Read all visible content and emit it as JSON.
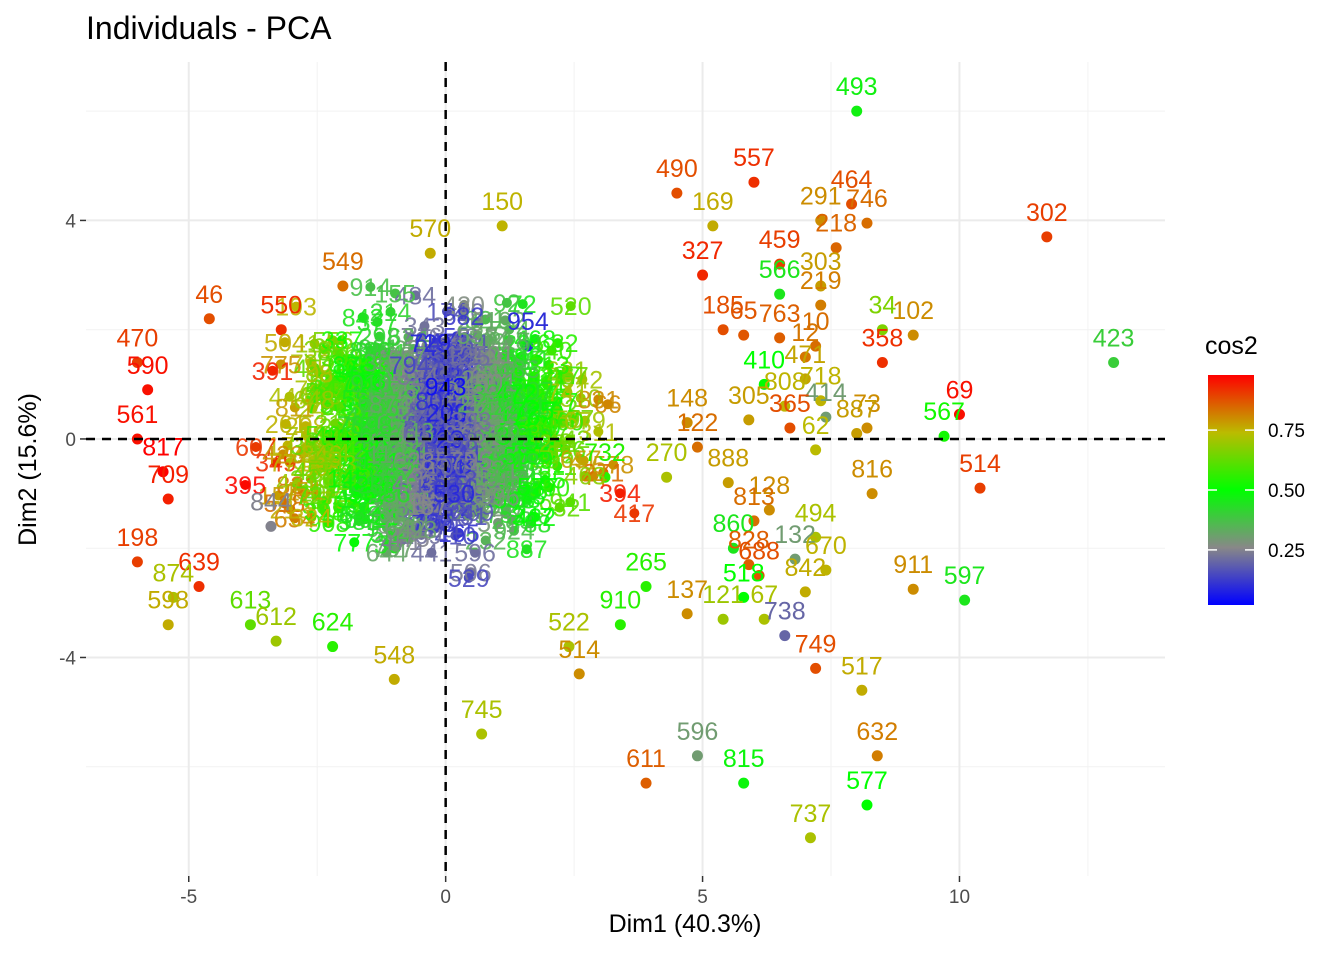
{
  "chart_data": {
    "type": "scatter",
    "title": "Individuals - PCA",
    "xlabel": "Dim1 (40.3%)",
    "ylabel": "Dim2 (15.6%)",
    "xlim": [
      -7,
      14
    ],
    "ylim": [
      -8,
      6.9
    ],
    "x_ticks": [
      -5,
      0,
      5,
      10
    ],
    "y_ticks": [
      -4,
      0,
      4
    ],
    "x_tick_labels": [
      "-5",
      "0",
      "5",
      "10"
    ],
    "y_tick_labels": [
      "-4",
      "0",
      "4"
    ],
    "grid": true,
    "reference_lines": {
      "x": 0,
      "y": 0,
      "style": "dashed"
    },
    "color_variable": "cos2",
    "legend": {
      "title": "cos2",
      "placement": "right",
      "ticks": [
        0.25,
        0.5,
        0.75
      ],
      "tick_labels": [
        "0.25",
        "0.50",
        "0.75"
      ],
      "range": [
        0.02,
        0.98
      ],
      "gradient_colors": [
        "#0000ff",
        "#888888",
        "#00ff00",
        "#bbbb00",
        "#ff0000"
      ]
    },
    "points": [
      {
        "label": "493",
        "x": 8.0,
        "y": 6.0,
        "cos2": 0.47
      },
      {
        "label": "557",
        "x": 6.0,
        "y": 4.7,
        "cos2": 0.92
      },
      {
        "label": "490",
        "x": 4.5,
        "y": 4.5,
        "cos2": 0.88
      },
      {
        "label": "169",
        "x": 5.2,
        "y": 3.9,
        "cos2": 0.76
      },
      {
        "label": "464",
        "x": 7.9,
        "y": 4.3,
        "cos2": 0.88
      },
      {
        "label": "291",
        "x": 7.3,
        "y": 4.0,
        "cos2": 0.8
      },
      {
        "label": "746",
        "x": 8.2,
        "y": 3.95,
        "cos2": 0.84
      },
      {
        "label": "218",
        "x": 7.6,
        "y": 3.5,
        "cos2": 0.85
      },
      {
        "label": "302",
        "x": 11.7,
        "y": 3.7,
        "cos2": 0.9
      },
      {
        "label": "327",
        "x": 5.0,
        "y": 3.0,
        "cos2": 0.93
      },
      {
        "label": "459",
        "x": 6.5,
        "y": 3.2,
        "cos2": 0.9
      },
      {
        "label": "566",
        "x": 6.5,
        "y": 2.65,
        "cos2": 0.45
      },
      {
        "label": "303",
        "x": 7.3,
        "y": 2.8,
        "cos2": 0.78
      },
      {
        "label": "219",
        "x": 7.3,
        "y": 2.45,
        "cos2": 0.82
      },
      {
        "label": "185",
        "x": 5.4,
        "y": 2.0,
        "cos2": 0.88
      },
      {
        "label": "65",
        "x": 5.8,
        "y": 1.9,
        "cos2": 0.87
      },
      {
        "label": "763",
        "x": 6.5,
        "y": 1.85,
        "cos2": 0.86
      },
      {
        "label": "34",
        "x": 8.5,
        "y": 2.0,
        "cos2": 0.66
      },
      {
        "label": "102",
        "x": 9.1,
        "y": 1.9,
        "cos2": 0.8
      },
      {
        "label": "358",
        "x": 8.5,
        "y": 1.4,
        "cos2": 0.92
      },
      {
        "label": "423",
        "x": 13.0,
        "y": 1.4,
        "cos2": 0.4
      },
      {
        "label": "12",
        "x": 7.0,
        "y": 1.5,
        "cos2": 0.83
      },
      {
        "label": "10",
        "x": 7.2,
        "y": 1.7,
        "cos2": 0.84
      },
      {
        "label": "471",
        "x": 7.0,
        "y": 1.1,
        "cos2": 0.77
      },
      {
        "label": "410",
        "x": 6.2,
        "y": 1.0,
        "cos2": 0.5
      },
      {
        "label": "718",
        "x": 7.3,
        "y": 0.7,
        "cos2": 0.75
      },
      {
        "label": "69",
        "x": 10.0,
        "y": 0.45,
        "cos2": 0.96
      },
      {
        "label": "567",
        "x": 9.7,
        "y": 0.05,
        "cos2": 0.52
      },
      {
        "label": "414",
        "x": 7.4,
        "y": 0.4,
        "cos2": 0.3
      },
      {
        "label": "305",
        "x": 5.9,
        "y": 0.35,
        "cos2": 0.78
      },
      {
        "label": "808",
        "x": 6.6,
        "y": 0.6,
        "cos2": 0.75
      },
      {
        "label": "365",
        "x": 6.7,
        "y": 0.2,
        "cos2": 0.88
      },
      {
        "label": "73",
        "x": 8.2,
        "y": 0.2,
        "cos2": 0.8
      },
      {
        "label": "887",
        "x": 8.0,
        "y": 0.1,
        "cos2": 0.78
      },
      {
        "label": "62",
        "x": 7.2,
        "y": -0.2,
        "cos2": 0.74
      },
      {
        "label": "816",
        "x": 8.3,
        "y": -1.0,
        "cos2": 0.8
      },
      {
        "label": "514",
        "x": 10.4,
        "y": -0.9,
        "cos2": 0.9
      },
      {
        "label": "888",
        "x": 5.5,
        "y": -0.8,
        "cos2": 0.78
      },
      {
        "label": "128",
        "x": 6.3,
        "y": -1.3,
        "cos2": 0.8
      },
      {
        "label": "813",
        "x": 6.0,
        "y": -1.5,
        "cos2": 0.84
      },
      {
        "label": "494",
        "x": 7.2,
        "y": -1.8,
        "cos2": 0.72
      },
      {
        "label": "860",
        "x": 5.6,
        "y": -2.0,
        "cos2": 0.45
      },
      {
        "label": "828",
        "x": 5.9,
        "y": -2.3,
        "cos2": 0.86
      },
      {
        "label": "132",
        "x": 6.8,
        "y": -2.2,
        "cos2": 0.3
      },
      {
        "label": "670",
        "x": 7.4,
        "y": -2.4,
        "cos2": 0.75
      },
      {
        "label": "688",
        "x": 6.1,
        "y": -2.5,
        "cos2": 0.88
      },
      {
        "label": "911",
        "x": 9.1,
        "y": -2.75,
        "cos2": 0.8
      },
      {
        "label": "597",
        "x": 10.1,
        "y": -2.95,
        "cos2": 0.45
      },
      {
        "label": "842",
        "x": 7.0,
        "y": -2.8,
        "cos2": 0.76
      },
      {
        "label": "518",
        "x": 5.8,
        "y": -2.9,
        "cos2": 0.5
      },
      {
        "label": "137",
        "x": 4.7,
        "y": -3.2,
        "cos2": 0.8
      },
      {
        "label": "121",
        "x": 5.4,
        "y": -3.3,
        "cos2": 0.7
      },
      {
        "label": "67",
        "x": 6.2,
        "y": -3.3,
        "cos2": 0.72
      },
      {
        "label": "738",
        "x": 6.6,
        "y": -3.6,
        "cos2": 0.2
      },
      {
        "label": "749",
        "x": 7.2,
        "y": -4.2,
        "cos2": 0.88
      },
      {
        "label": "517",
        "x": 8.1,
        "y": -4.6,
        "cos2": 0.76
      },
      {
        "label": "265",
        "x": 3.9,
        "y": -2.7,
        "cos2": 0.55
      },
      {
        "label": "745",
        "x": 0.7,
        "y": -5.4,
        "cos2": 0.72
      },
      {
        "label": "596",
        "x": 4.9,
        "y": -5.8,
        "cos2": 0.3
      },
      {
        "label": "611",
        "x": 3.9,
        "y": -6.3,
        "cos2": 0.86
      },
      {
        "label": "815",
        "x": 5.8,
        "y": -6.3,
        "cos2": 0.48
      },
      {
        "label": "632",
        "x": 8.4,
        "y": -5.8,
        "cos2": 0.82
      },
      {
        "label": "577",
        "x": 8.2,
        "y": -6.7,
        "cos2": 0.5
      },
      {
        "label": "737",
        "x": 7.1,
        "y": -7.3,
        "cos2": 0.72
      },
      {
        "label": "150",
        "x": 1.1,
        "y": 3.9,
        "cos2": 0.75
      },
      {
        "label": "570",
        "x": -0.3,
        "y": 3.4,
        "cos2": 0.76
      },
      {
        "label": "549",
        "x": -2.0,
        "y": 2.8,
        "cos2": 0.84
      },
      {
        "label": "46",
        "x": -4.6,
        "y": 2.2,
        "cos2": 0.88
      },
      {
        "label": "550",
        "x": -3.2,
        "y": 2.0,
        "cos2": 0.92
      },
      {
        "label": "470",
        "x": -6.0,
        "y": 1.4,
        "cos2": 0.9
      },
      {
        "label": "590",
        "x": -5.8,
        "y": 0.9,
        "cos2": 0.96
      },
      {
        "label": "561",
        "x": -6.0,
        "y": 0.0,
        "cos2": 0.96
      },
      {
        "label": "817",
        "x": -5.5,
        "y": -0.6,
        "cos2": 0.98
      },
      {
        "label": "709",
        "x": -5.4,
        "y": -1.1,
        "cos2": 0.94
      },
      {
        "label": "198",
        "x": -6.0,
        "y": -2.25,
        "cos2": 0.9
      },
      {
        "label": "639",
        "x": -4.8,
        "y": -2.7,
        "cos2": 0.92
      },
      {
        "label": "874",
        "x": -5.3,
        "y": -2.9,
        "cos2": 0.72
      },
      {
        "label": "598",
        "x": -5.4,
        "y": -3.4,
        "cos2": 0.76
      },
      {
        "label": "613",
        "x": -3.8,
        "y": -3.4,
        "cos2": 0.62
      },
      {
        "label": "612",
        "x": -3.3,
        "y": -3.7,
        "cos2": 0.7
      },
      {
        "label": "624",
        "x": -2.2,
        "y": -3.8,
        "cos2": 0.55
      },
      {
        "label": "548",
        "x": -1.0,
        "y": -4.4,
        "cos2": 0.76
      },
      {
        "label": "794",
        "x": -0.7,
        "y": 0.9,
        "cos2": 0.15
      },
      {
        "label": "844",
        "x": -3.4,
        "y": -1.6,
        "cos2": 0.25
      },
      {
        "label": "954",
        "x": 1.6,
        "y": 1.7,
        "cos2": 0.1
      },
      {
        "label": "729",
        "x": -0.3,
        "y": 1.3,
        "cos2": 0.1
      },
      {
        "label": "943",
        "x": 0.0,
        "y": 0.5,
        "cos2": 0.05
      },
      {
        "label": "732",
        "x": 3.1,
        "y": -0.7,
        "cos2": 0.55
      },
      {
        "label": "270",
        "x": 4.3,
        "y": -0.7,
        "cos2": 0.72
      },
      {
        "label": "148",
        "x": 4.7,
        "y": 0.3,
        "cos2": 0.8
      },
      {
        "label": "122",
        "x": 4.9,
        "y": -0.15,
        "cos2": 0.84
      },
      {
        "label": "522",
        "x": 2.4,
        "y": -3.8,
        "cos2": 0.72
      },
      {
        "label": "514b",
        "x": 2.6,
        "y": -4.3,
        "cos2": 0.8
      },
      {
        "label": "910",
        "x": 3.4,
        "y": -3.4,
        "cos2": 0.55
      }
    ]
  }
}
